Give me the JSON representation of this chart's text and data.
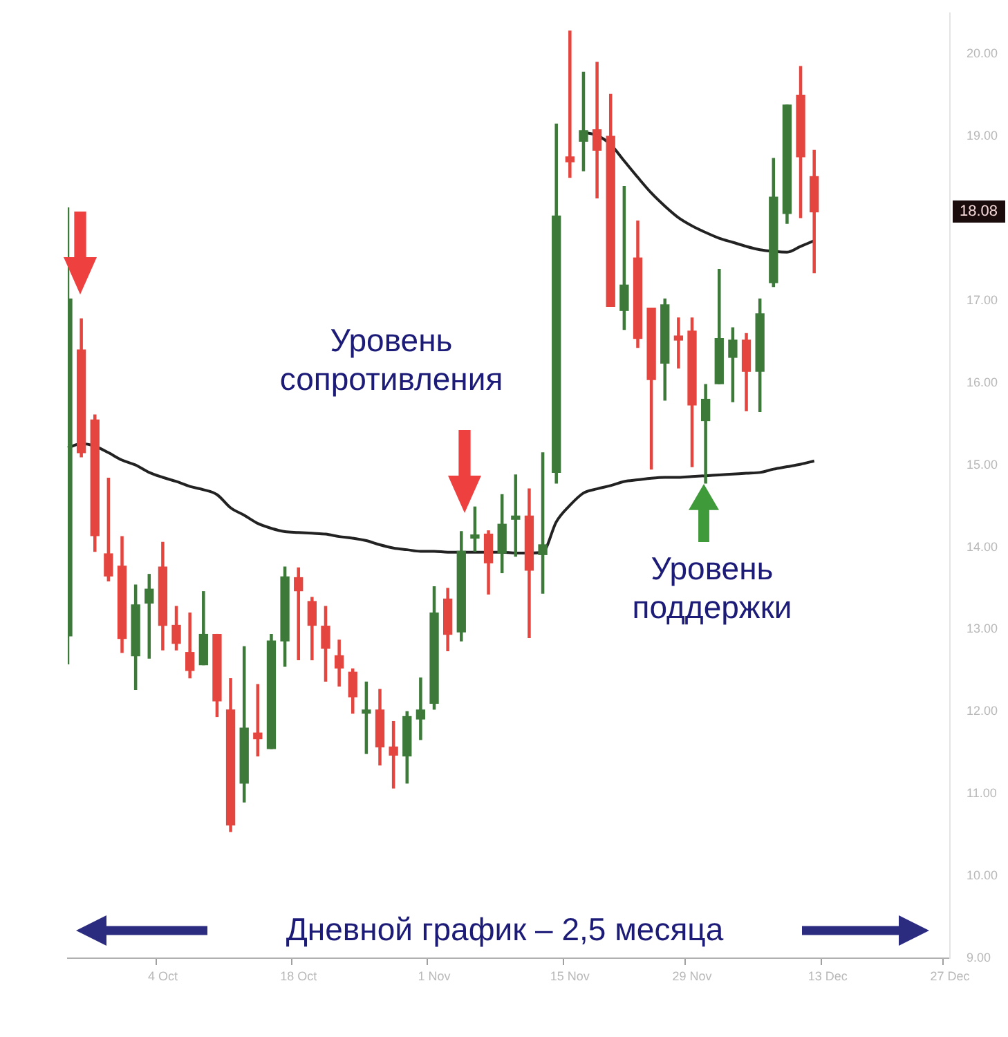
{
  "chart_data": {
    "type": "candlestick",
    "categories": [
      null,
      null,
      null,
      null,
      null,
      null,
      null,
      "4 Oct",
      null,
      null,
      null,
      null,
      null,
      null,
      null,
      null,
      null,
      "18 Oct",
      null,
      null,
      null,
      null,
      null,
      null,
      null,
      null,
      null,
      "1 Nov",
      null,
      null,
      null,
      null,
      null,
      null,
      null,
      null,
      null,
      "15 Nov",
      null,
      null,
      null,
      null,
      null,
      null,
      null,
      null,
      "29 Nov",
      null,
      null,
      null,
      null,
      null,
      null,
      null,
      null,
      null,
      "13 Dec",
      null,
      null,
      null,
      null,
      null,
      null,
      null,
      null,
      "27 Dec"
    ],
    "ohlc": [
      [
        12.92,
        18.13,
        12.58,
        17.02
      ],
      [
        16.4,
        16.78,
        15.1,
        15.15
      ],
      [
        15.55,
        15.61,
        13.95,
        14.14
      ],
      [
        13.92,
        14.84,
        13.59,
        13.65
      ],
      [
        13.77,
        14.13,
        12.72,
        12.89
      ],
      [
        12.68,
        13.54,
        12.27,
        13.3
      ],
      [
        13.32,
        13.67,
        12.65,
        13.49
      ],
      [
        13.76,
        14.06,
        12.75,
        13.05
      ],
      [
        13.05,
        13.28,
        12.75,
        12.83
      ],
      [
        12.72,
        13.2,
        12.41,
        12.5
      ],
      [
        12.57,
        13.46,
        12.57,
        12.94
      ],
      [
        12.94,
        12.94,
        11.94,
        12.13
      ],
      [
        12.02,
        12.4,
        10.54,
        10.62
      ],
      [
        11.13,
        12.79,
        10.9,
        11.8
      ],
      [
        11.74,
        12.33,
        11.46,
        11.67
      ],
      [
        11.55,
        12.94,
        11.55,
        12.86
      ],
      [
        12.86,
        13.76,
        12.55,
        13.64
      ],
      [
        13.63,
        13.75,
        12.63,
        13.47
      ],
      [
        13.34,
        13.39,
        12.63,
        13.05
      ],
      [
        13.04,
        13.28,
        12.37,
        12.77
      ],
      [
        12.68,
        12.87,
        12.31,
        12.53
      ],
      [
        12.48,
        12.52,
        11.98,
        12.18
      ],
      [
        11.98,
        12.36,
        11.49,
        12.02
      ],
      [
        12.02,
        12.27,
        11.35,
        11.57
      ],
      [
        11.57,
        11.88,
        11.07,
        11.47
      ],
      [
        11.46,
        12.0,
        11.13,
        11.94
      ],
      [
        11.91,
        12.41,
        11.66,
        12.02
      ],
      [
        12.1,
        13.52,
        12.03,
        13.2
      ],
      [
        13.37,
        13.5,
        12.74,
        12.94
      ],
      [
        12.97,
        14.19,
        12.86,
        13.95
      ],
      [
        14.11,
        14.49,
        13.95,
        14.15
      ],
      [
        14.16,
        14.2,
        13.43,
        13.81
      ],
      [
        13.93,
        14.64,
        13.69,
        14.28
      ],
      [
        14.34,
        14.88,
        13.89,
        14.38
      ],
      [
        14.38,
        14.71,
        12.9,
        13.72
      ],
      [
        13.91,
        15.15,
        13.44,
        14.03
      ],
      [
        14.91,
        19.15,
        14.78,
        18.03
      ],
      [
        18.75,
        20.28,
        18.5,
        18.69
      ],
      [
        18.94,
        19.78,
        18.58,
        19.07
      ],
      [
        19.08,
        19.9,
        18.25,
        18.83
      ],
      [
        19.0,
        19.51,
        16.93,
        16.93
      ],
      [
        16.88,
        18.39,
        16.65,
        17.19
      ],
      [
        17.52,
        17.97,
        16.43,
        16.54
      ],
      [
        16.91,
        16.91,
        14.95,
        16.04
      ],
      [
        16.24,
        17.02,
        15.79,
        16.95
      ],
      [
        16.57,
        16.79,
        16.18,
        16.52
      ],
      [
        16.63,
        16.79,
        14.98,
        15.73
      ],
      [
        15.54,
        15.98,
        14.78,
        15.8
      ],
      [
        15.99,
        17.38,
        15.99,
        16.54
      ],
      [
        16.31,
        16.67,
        15.77,
        16.52
      ],
      [
        16.52,
        16.6,
        15.66,
        16.14
      ],
      [
        16.14,
        17.02,
        15.65,
        16.84
      ],
      [
        17.22,
        18.73,
        17.17,
        18.26
      ],
      [
        18.06,
        19.38,
        17.94,
        19.38
      ],
      [
        19.5,
        19.85,
        18.01,
        18.75
      ],
      [
        18.51,
        18.83,
        17.34,
        18.08
      ],
      null,
      null,
      null,
      null,
      null,
      null,
      null,
      null,
      null,
      null
    ],
    "colors": [
      "#3d7a3a",
      "#e5453f",
      "#e5453f",
      "#e5453f",
      "#e5453f",
      "#3d7a3a",
      "#3d7a3a",
      "#e5453f",
      "#e5453f",
      "#e5453f",
      "#3d7a3a",
      "#e5453f",
      "#e5453f",
      "#3d7a3a",
      "#e5453f",
      "#3d7a3a",
      "#3d7a3a",
      "#e5453f",
      "#e5453f",
      "#e5453f",
      "#e5453f",
      "#e5453f",
      "#3d7a3a",
      "#e5453f",
      "#e5453f",
      "#3d7a3a",
      "#3d7a3a",
      "#3d7a3a",
      "#e5453f",
      "#3d7a3a",
      "#3d7a3a",
      "#e5453f",
      "#3d7a3a",
      "#3d7a3a",
      "#e5453f",
      "#3d7a3a",
      "#3d7a3a",
      "#e5453f",
      "#3d7a3a",
      "#e5453f",
      "#e5453f",
      "#3d7a3a",
      "#e5453f",
      "#e5453f",
      "#3d7a3a",
      "#e5453f",
      "#e5453f",
      "#3d7a3a",
      "#3d7a3a",
      "#3d7a3a",
      "#e5453f",
      "#3d7a3a",
      "#3d7a3a",
      "#3d7a3a",
      "#e5453f",
      "#e5453f",
      null,
      null,
      null,
      null,
      null,
      null,
      null,
      null,
      null,
      null
    ],
    "series": [
      {
        "type": "line",
        "color": "#222222",
        "values": [
          15.21,
          15.26,
          15.23,
          15.15,
          15.06,
          15.0,
          14.91,
          14.85,
          14.8,
          14.74,
          14.7,
          14.64,
          14.48,
          14.39,
          14.29,
          14.23,
          14.19,
          14.18,
          14.17,
          14.16,
          14.13,
          14.11,
          14.08,
          14.03,
          13.99,
          13.97,
          13.95,
          13.95,
          13.94,
          13.94,
          13.94,
          13.94,
          13.94,
          13.93,
          13.93,
          13.94,
          14.31,
          14.51,
          14.66,
          14.71,
          14.75,
          14.8,
          14.82,
          14.84,
          14.85,
          14.85,
          14.86,
          14.87,
          14.88,
          14.89,
          14.9,
          14.91,
          14.95,
          14.98,
          15.01,
          15.05,
          null,
          null,
          null,
          null,
          null,
          null,
          null,
          null,
          null,
          null
        ]
      },
      {
        "type": "line",
        "color": "#222222",
        "values": [
          null,
          null,
          null,
          null,
          null,
          null,
          null,
          null,
          null,
          null,
          null,
          null,
          null,
          null,
          null,
          null,
          null,
          null,
          null,
          null,
          null,
          null,
          null,
          null,
          null,
          null,
          null,
          null,
          null,
          null,
          null,
          null,
          null,
          null,
          null,
          null,
          null,
          null,
          19.05,
          19.01,
          18.9,
          18.7,
          18.5,
          18.31,
          18.15,
          18.01,
          17.91,
          17.83,
          17.76,
          17.71,
          17.66,
          17.62,
          17.6,
          17.59,
          17.66,
          17.73,
          null,
          null,
          null,
          null,
          null,
          null,
          null,
          null,
          null,
          null
        ]
      }
    ],
    "ylim": [
      9,
      20.5
    ],
    "yticks": [
      {
        "value": 9,
        "label": "9.00"
      },
      {
        "value": 10,
        "label": "10.00"
      },
      {
        "value": 11,
        "label": "11.00"
      },
      {
        "value": 12,
        "label": "12.00"
      },
      {
        "value": 13,
        "label": "13.00"
      },
      {
        "value": 14,
        "label": "14.00"
      },
      {
        "value": 15,
        "label": "15.00"
      },
      {
        "value": 16,
        "label": "16.00"
      },
      {
        "value": 17,
        "label": "17.00"
      },
      {
        "value": 19,
        "label": "19.00"
      },
      {
        "value": 20,
        "label": "20.00"
      }
    ],
    "annotations": [
      "Уровень сопротивления",
      "Уровень поддержки",
      "Дневной график – 2,5 месяца",
      {
        "text": "18.08",
        "y": 18.08
      }
    ]
  }
}
